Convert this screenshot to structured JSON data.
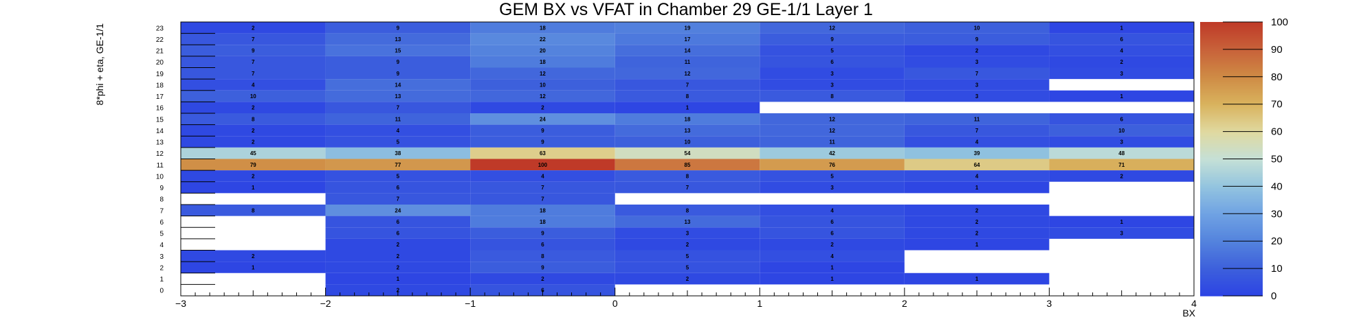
{
  "chart_data": {
    "type": "heatmap",
    "title": "GEM BX vs VFAT in Chamber 29 GE-1/1 Layer 1",
    "xlabel": "BX",
    "ylabel": "8*phi + eta, GE-1/1",
    "xlim": [
      -3,
      4
    ],
    "ylim": [
      0,
      24
    ],
    "x_ticks": [
      "−3",
      "−2",
      "−1",
      "0",
      "1",
      "2",
      "3",
      "4"
    ],
    "y_ticks": [
      "0",
      "1",
      "2",
      "3",
      "4",
      "5",
      "6",
      "7",
      "8",
      "9",
      "10",
      "11",
      "12",
      "13",
      "14",
      "15",
      "16",
      "17",
      "18",
      "19",
      "20",
      "21",
      "22",
      "23"
    ],
    "x_bins": [
      -2.5,
      -1.5,
      -0.5,
      0.5,
      1.5,
      2.5,
      3.5
    ],
    "y_bins": [
      0,
      1,
      2,
      3,
      4,
      5,
      6,
      7,
      8,
      9,
      10,
      11,
      12,
      13,
      14,
      15,
      16,
      17,
      18,
      19,
      20,
      21,
      22,
      23
    ],
    "z_min": 0,
    "z_max": 100,
    "colorbar_ticks": [
      "0",
      "10",
      "20",
      "30",
      "40",
      "50",
      "60",
      "70",
      "80",
      "90",
      "100"
    ],
    "palette_low_to_high": [
      "#2c43e4",
      "#3d60dc",
      "#5483dd",
      "#6fa2e3",
      "#93c4df",
      "#c5e0d6",
      "#e0d9a0",
      "#d9b35e",
      "#cf8b45",
      "#c8623a",
      "#bf3a28"
    ],
    "cells": [
      [
        23,
        -2.5,
        2
      ],
      [
        23,
        -1.5,
        9
      ],
      [
        23,
        -0.5,
        18
      ],
      [
        23,
        0.5,
        19
      ],
      [
        23,
        1.5,
        12
      ],
      [
        23,
        2.5,
        10
      ],
      [
        23,
        3.5,
        1
      ],
      [
        22,
        -2.5,
        7
      ],
      [
        22,
        -1.5,
        13
      ],
      [
        22,
        -0.5,
        22
      ],
      [
        22,
        0.5,
        17
      ],
      [
        22,
        1.5,
        9
      ],
      [
        22,
        2.5,
        9
      ],
      [
        22,
        3.5,
        6
      ],
      [
        21,
        -2.5,
        9
      ],
      [
        21,
        -1.5,
        15
      ],
      [
        21,
        -0.5,
        20
      ],
      [
        21,
        0.5,
        14
      ],
      [
        21,
        1.5,
        5
      ],
      [
        21,
        2.5,
        2
      ],
      [
        21,
        3.5,
        4
      ],
      [
        20,
        -2.5,
        7
      ],
      [
        20,
        -1.5,
        9
      ],
      [
        20,
        -0.5,
        18
      ],
      [
        20,
        0.5,
        11
      ],
      [
        20,
        1.5,
        6
      ],
      [
        20,
        2.5,
        3
      ],
      [
        20,
        3.5,
        2
      ],
      [
        19,
        -2.5,
        7
      ],
      [
        19,
        -1.5,
        9
      ],
      [
        19,
        -0.5,
        12
      ],
      [
        19,
        0.5,
        12
      ],
      [
        19,
        1.5,
        3
      ],
      [
        19,
        2.5,
        7
      ],
      [
        19,
        3.5,
        3
      ],
      [
        18,
        -2.5,
        4
      ],
      [
        18,
        -1.5,
        14
      ],
      [
        18,
        -0.5,
        10
      ],
      [
        18,
        0.5,
        7
      ],
      [
        18,
        1.5,
        3
      ],
      [
        18,
        2.5,
        3
      ],
      [
        17,
        -2.5,
        10
      ],
      [
        17,
        -1.5,
        13
      ],
      [
        17,
        -0.5,
        12
      ],
      [
        17,
        0.5,
        8
      ],
      [
        17,
        1.5,
        8
      ],
      [
        17,
        2.5,
        3
      ],
      [
        17,
        3.5,
        1
      ],
      [
        16,
        -2.5,
        2
      ],
      [
        16,
        -1.5,
        7
      ],
      [
        16,
        -0.5,
        2
      ],
      [
        16,
        0.5,
        1
      ],
      [
        15,
        -2.5,
        8
      ],
      [
        15,
        -1.5,
        11
      ],
      [
        15,
        -0.5,
        24
      ],
      [
        15,
        0.5,
        18
      ],
      [
        15,
        1.5,
        12
      ],
      [
        15,
        2.5,
        11
      ],
      [
        15,
        3.5,
        6
      ],
      [
        14,
        -2.5,
        2
      ],
      [
        14,
        -1.5,
        4
      ],
      [
        14,
        -0.5,
        9
      ],
      [
        14,
        0.5,
        13
      ],
      [
        14,
        1.5,
        12
      ],
      [
        14,
        2.5,
        7
      ],
      [
        14,
        3.5,
        10
      ],
      [
        13,
        -2.5,
        2
      ],
      [
        13,
        -1.5,
        5
      ],
      [
        13,
        -0.5,
        9
      ],
      [
        13,
        0.5,
        10
      ],
      [
        13,
        1.5,
        11
      ],
      [
        13,
        2.5,
        4
      ],
      [
        13,
        3.5,
        3
      ],
      [
        12,
        -2.5,
        45
      ],
      [
        12,
        -1.5,
        38
      ],
      [
        12,
        -0.5,
        63
      ],
      [
        12,
        0.5,
        54
      ],
      [
        12,
        1.5,
        42
      ],
      [
        12,
        2.5,
        39
      ],
      [
        12,
        3.5,
        48
      ],
      [
        11,
        -2.5,
        79
      ],
      [
        11,
        -1.5,
        77
      ],
      [
        11,
        -0.5,
        100
      ],
      [
        11,
        0.5,
        85
      ],
      [
        11,
        1.5,
        76
      ],
      [
        11,
        2.5,
        64
      ],
      [
        11,
        3.5,
        71
      ],
      [
        10,
        -2.5,
        2
      ],
      [
        10,
        -1.5,
        5
      ],
      [
        10,
        -0.5,
        4
      ],
      [
        10,
        0.5,
        8
      ],
      [
        10,
        1.5,
        5
      ],
      [
        10,
        2.5,
        4
      ],
      [
        10,
        3.5,
        2
      ],
      [
        9,
        -2.5,
        1
      ],
      [
        9,
        -1.5,
        6
      ],
      [
        9,
        -0.5,
        7
      ],
      [
        9,
        0.5,
        7
      ],
      [
        9,
        1.5,
        3
      ],
      [
        9,
        2.5,
        1
      ],
      [
        8,
        -1.5,
        7
      ],
      [
        8,
        -0.5,
        7
      ],
      [
        7,
        -2.5,
        8
      ],
      [
        7,
        -1.5,
        24
      ],
      [
        7,
        -0.5,
        18
      ],
      [
        7,
        0.5,
        8
      ],
      [
        7,
        1.5,
        4
      ],
      [
        7,
        2.5,
        2
      ],
      [
        6,
        -1.5,
        6
      ],
      [
        6,
        -0.5,
        18
      ],
      [
        6,
        0.5,
        13
      ],
      [
        6,
        1.5,
        6
      ],
      [
        6,
        2.5,
        2
      ],
      [
        6,
        3.5,
        1
      ],
      [
        5,
        -1.5,
        6
      ],
      [
        5,
        -0.5,
        9
      ],
      [
        5,
        0.5,
        3
      ],
      [
        5,
        1.5,
        6
      ],
      [
        5,
        2.5,
        2
      ],
      [
        5,
        3.5,
        3
      ],
      [
        4,
        -1.5,
        2
      ],
      [
        4,
        -0.5,
        6
      ],
      [
        4,
        0.5,
        2
      ],
      [
        4,
        1.5,
        2
      ],
      [
        4,
        2.5,
        1
      ],
      [
        3,
        -2.5,
        2
      ],
      [
        3,
        -1.5,
        2
      ],
      [
        3,
        -0.5,
        8
      ],
      [
        3,
        0.5,
        5
      ],
      [
        3,
        1.5,
        4
      ],
      [
        2,
        -2.5,
        1
      ],
      [
        2,
        -1.5,
        2
      ],
      [
        2,
        -0.5,
        9
      ],
      [
        2,
        0.5,
        5
      ],
      [
        2,
        1.5,
        1
      ],
      [
        1,
        -1.5,
        1
      ],
      [
        1,
        -0.5,
        2
      ],
      [
        1,
        0.5,
        2
      ],
      [
        1,
        1.5,
        1
      ],
      [
        1,
        2.5,
        1
      ],
      [
        0,
        -1.5,
        2
      ],
      [
        0,
        -0.5,
        6
      ]
    ]
  }
}
